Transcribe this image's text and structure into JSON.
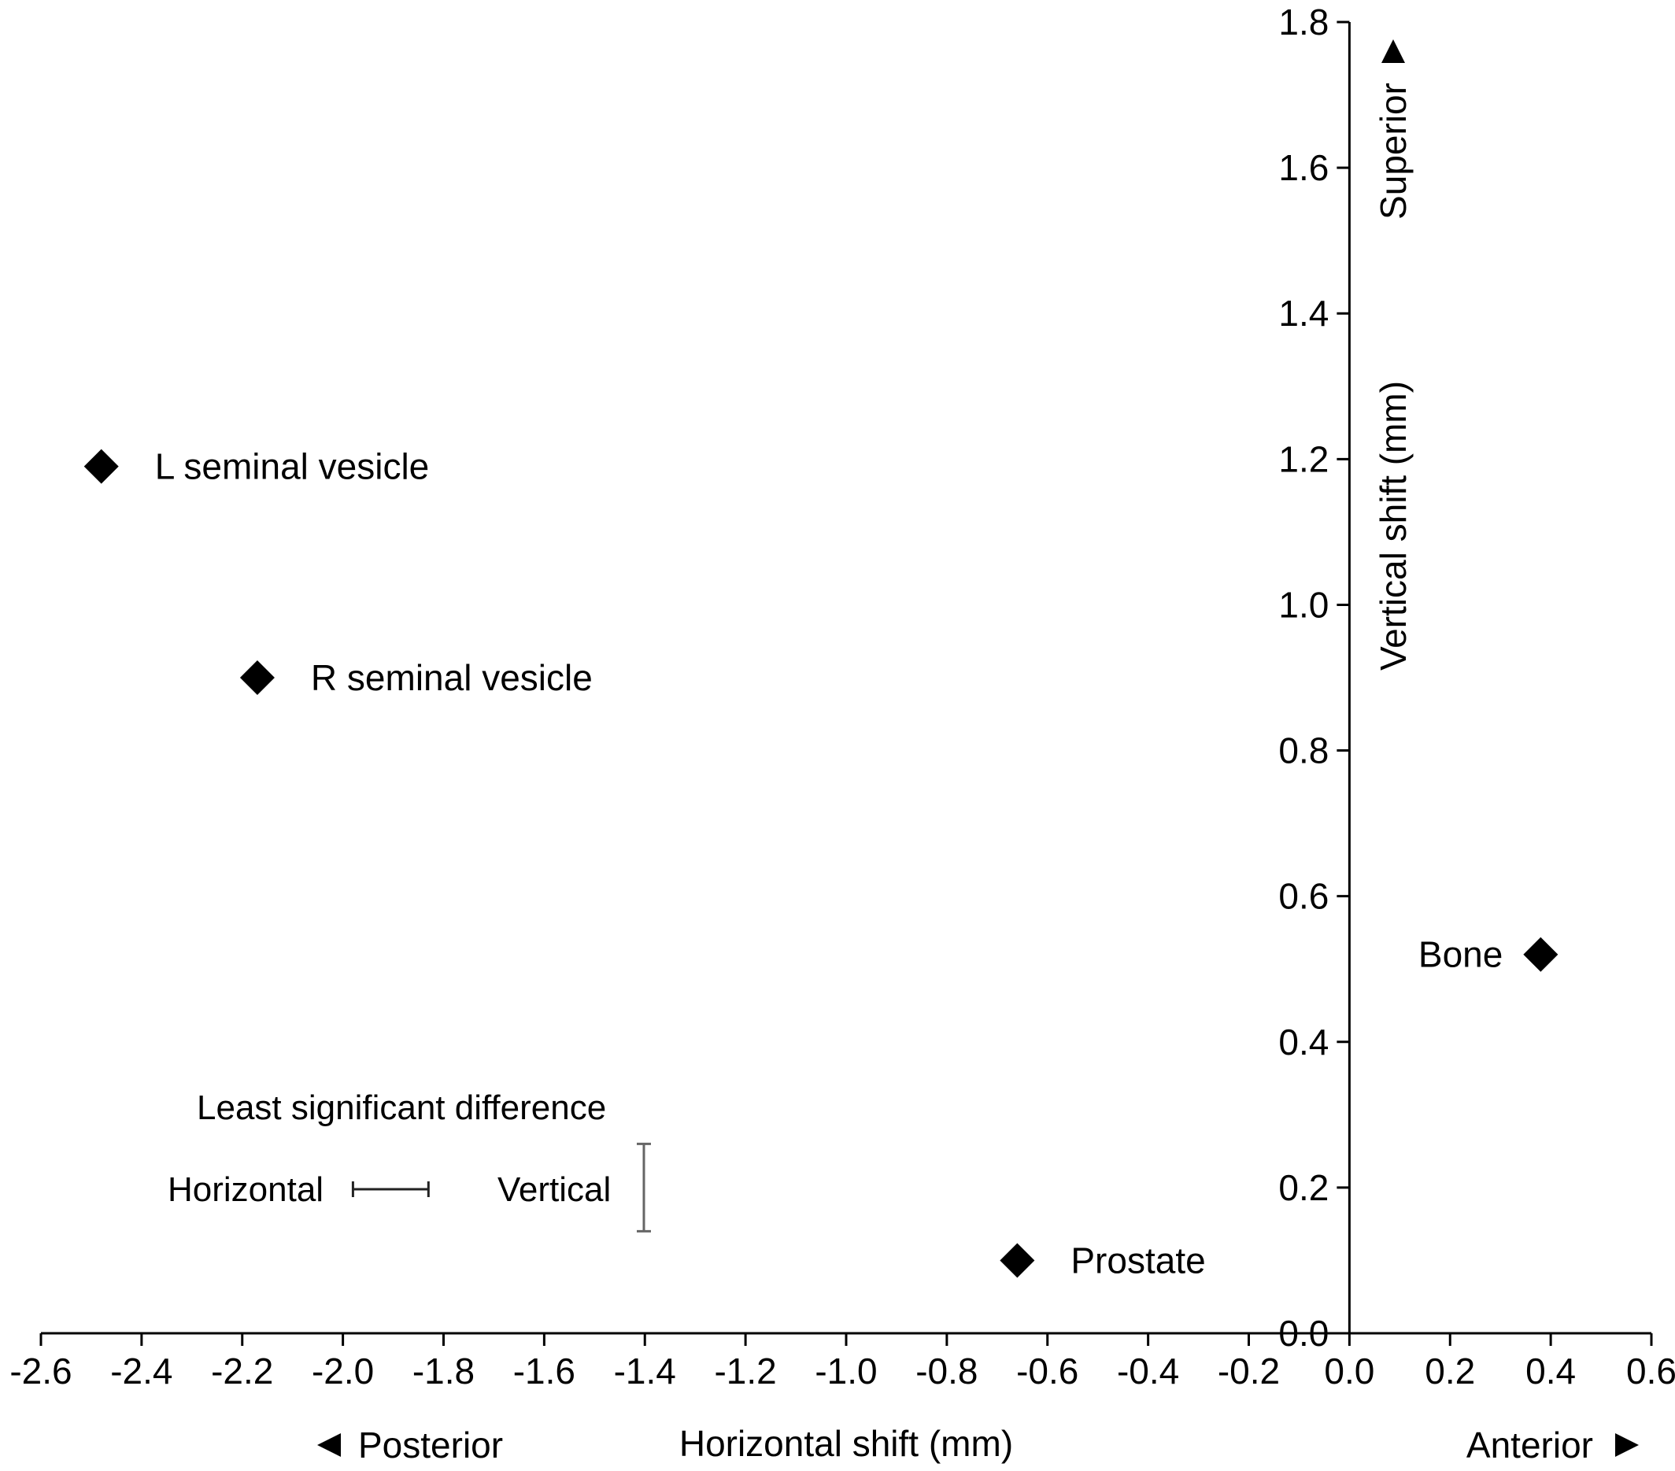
{
  "chart_data": {
    "type": "scatter",
    "title": "",
    "xlabel": "Horizontal shift (mm)",
    "ylabel": "Vertical shift (mm)",
    "xlim": [
      -2.6,
      0.6
    ],
    "ylim": [
      0.0,
      1.8
    ],
    "x_ticks": [
      -2.6,
      -2.4,
      -2.2,
      -2.0,
      -1.8,
      -1.6,
      -1.4,
      -1.2,
      -1.0,
      -0.8,
      -0.6,
      -0.4,
      -0.2,
      0.0,
      0.2,
      0.4,
      0.6
    ],
    "y_ticks": [
      0.0,
      0.2,
      0.4,
      0.6,
      0.8,
      1.0,
      1.2,
      1.4,
      1.6,
      1.8
    ],
    "x_tick_labels": [
      "-2.6",
      "-2.4",
      "-2.2",
      "-2.0",
      "-1.8",
      "-1.6",
      "-1.4",
      "-1.2",
      "-1.0",
      "-0.8",
      "-0.6",
      "-0.4",
      "-0.2",
      "0.0",
      "0.2",
      "0.4",
      "0.6"
    ],
    "y_tick_labels": [
      "0.0",
      "0.2",
      "0.4",
      "0.6",
      "0.8",
      "1.0",
      "1.2",
      "1.4",
      "1.6",
      "1.8"
    ],
    "grid": false,
    "marker": "diamond",
    "marker_color": "#000000",
    "points": [
      {
        "label": "L seminal vesicle",
        "x": -2.48,
        "y": 1.19
      },
      {
        "label": "R seminal vesicle",
        "x": -2.17,
        "y": 0.9
      },
      {
        "label": "Prostate",
        "x": -0.66,
        "y": 0.1
      },
      {
        "label": "Bone",
        "x": 0.38,
        "y": 0.52
      }
    ],
    "direction_labels": {
      "left": "Posterior",
      "right": "Anterior",
      "top": "Superior"
    },
    "lsd": {
      "title": "Least significant difference",
      "horizontal_label": "Horizontal",
      "vertical_label": "Vertical",
      "horizontal_x": [
        -1.98,
        -1.83
      ],
      "vertical_y": [
        0.14,
        0.26
      ]
    }
  }
}
